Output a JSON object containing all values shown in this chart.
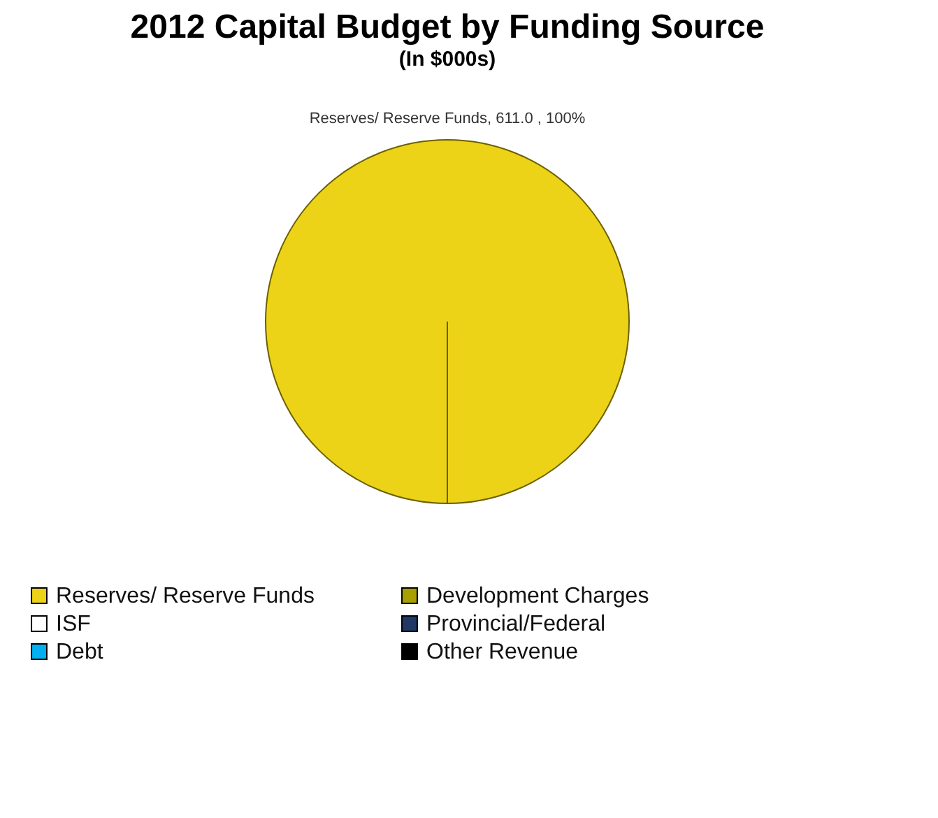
{
  "chart_data": {
    "type": "pie",
    "title": "2012 Capital Budget by Funding Source",
    "subtitle": "(In $000s)",
    "categories": [
      "Reserves/ Reserve Funds",
      "Development Charges",
      "ISF",
      "Provincial/Federal",
      "Debt",
      "Other Revenue"
    ],
    "values": [
      611.0,
      0,
      0,
      0,
      0,
      0
    ],
    "colors": [
      "#ecd318",
      "#a8a000",
      "#ffffff",
      "#1f3864",
      "#00b0f0",
      "#000000"
    ],
    "value_labels": [
      "Reserves/ Reserve Funds, 611.0 , 100%",
      null,
      null,
      null,
      null,
      null
    ],
    "legend": "bottom"
  }
}
